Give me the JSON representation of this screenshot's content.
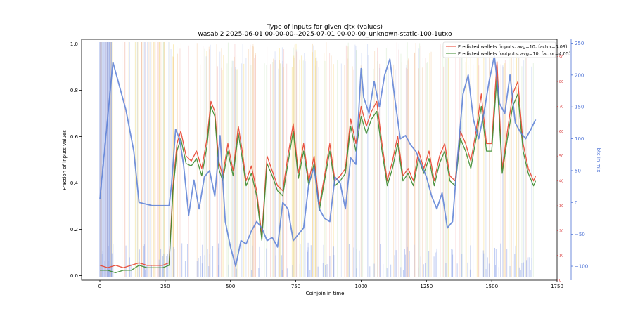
{
  "chart_data": {
    "type": "line",
    "title": "Type of inputs for given cjtx (values)",
    "subtitle": "wasabi2 2025-06-01 00-00-00--2025-07-01 00-00-00_unknown-static-100-1utxo",
    "xlabel": "Coinjoin in time",
    "ylabel": "Fraction of inputs values",
    "y2label": "btc in mix",
    "xlim": [
      -70,
      1750
    ],
    "ylim": [
      -0.02,
      1.02
    ],
    "y2lim": [
      -122,
      256
    ],
    "y3lim": [
      0,
      97
    ],
    "x_ticks": [
      "0",
      "250",
      "500",
      "750",
      "1000",
      "1250",
      "1500",
      "1750"
    ],
    "x_tick_values": [
      0,
      250,
      500,
      750,
      1000,
      1250,
      1500,
      1750
    ],
    "y_ticks": [
      "0.0",
      "0.2",
      "0.4",
      "0.6",
      "0.8",
      "1.0"
    ],
    "y_tick_values": [
      0.0,
      0.2,
      0.4,
      0.6,
      0.8,
      1.0
    ],
    "y2_ticks": [
      "−100",
      "−50",
      "0",
      "50",
      "100",
      "150",
      "200",
      "250"
    ],
    "y2_tick_values": [
      -100,
      -50,
      0,
      50,
      100,
      150,
      200,
      250
    ],
    "y3_ticks": [
      "0",
      "10",
      "20",
      "30",
      "40",
      "50",
      "60",
      "70",
      "80",
      "90"
    ],
    "y3_tick_values": [
      0,
      10,
      20,
      30,
      40,
      50,
      60,
      70,
      80,
      90
    ],
    "legend_position": "upper-right",
    "grid": false,
    "series": [
      {
        "name": "Predicted wallets (inputs, avg=10, factor=3.09)",
        "color": "#e8412c",
        "axis": "right-inner",
        "x": [
          0,
          30,
          60,
          90,
          120,
          150,
          180,
          210,
          240,
          265,
          280,
          295,
          310,
          330,
          350,
          370,
          390,
          410,
          425,
          440,
          455,
          470,
          490,
          510,
          530,
          545,
          560,
          580,
          600,
          620,
          640,
          660,
          680,
          700,
          720,
          740,
          760,
          780,
          800,
          820,
          840,
          860,
          880,
          900,
          920,
          940,
          960,
          980,
          1000,
          1020,
          1040,
          1060,
          1080,
          1100,
          1120,
          1140,
          1160,
          1180,
          1200,
          1220,
          1240,
          1260,
          1280,
          1300,
          1320,
          1340,
          1360,
          1380,
          1400,
          1420,
          1440,
          1460,
          1480,
          1500,
          1520,
          1540,
          1560,
          1580,
          1600,
          1620,
          1640,
          1660,
          1668
        ],
        "y": [
          6,
          5,
          6,
          5,
          6,
          7,
          6,
          6,
          6,
          7,
          38,
          55,
          60,
          50,
          48,
          52,
          45,
          57,
          72,
          68,
          48,
          42,
          55,
          44,
          62,
          52,
          40,
          46,
          36,
          18,
          50,
          44,
          38,
          36,
          50,
          63,
          43,
          55,
          40,
          50,
          30,
          42,
          55,
          40,
          42,
          45,
          65,
          55,
          70,
          62,
          68,
          72,
          55,
          40,
          48,
          58,
          42,
          45,
          40,
          52,
          45,
          52,
          40,
          50,
          55,
          42,
          40,
          60,
          55,
          48,
          60,
          75,
          55,
          55,
          88,
          45,
          60,
          75,
          80,
          55,
          45,
          40,
          42
        ]
      },
      {
        "name": "Predicted wallets (outputs, avg=10, factor=4.05)",
        "color": "#3a8a2e",
        "axis": "right-inner",
        "x": [
          0,
          30,
          60,
          90,
          120,
          150,
          180,
          210,
          240,
          265,
          280,
          295,
          310,
          330,
          350,
          370,
          390,
          410,
          425,
          440,
          455,
          470,
          490,
          510,
          530,
          545,
          560,
          580,
          600,
          620,
          640,
          660,
          680,
          700,
          720,
          740,
          760,
          780,
          800,
          820,
          840,
          860,
          880,
          900,
          920,
          940,
          960,
          980,
          1000,
          1020,
          1040,
          1060,
          1080,
          1100,
          1120,
          1140,
          1160,
          1180,
          1200,
          1220,
          1240,
          1260,
          1280,
          1300,
          1320,
          1340,
          1360,
          1380,
          1400,
          1420,
          1440,
          1460,
          1480,
          1500,
          1520,
          1540,
          1560,
          1580,
          1600,
          1620,
          1640,
          1660,
          1668
        ],
        "y": [
          4,
          4,
          3,
          4,
          4,
          6,
          5,
          5,
          5,
          6,
          36,
          52,
          57,
          47,
          46,
          49,
          42,
          54,
          70,
          66,
          45,
          40,
          52,
          42,
          59,
          49,
          38,
          43,
          34,
          16,
          47,
          42,
          36,
          34,
          47,
          60,
          41,
          52,
          38,
          47,
          28,
          40,
          52,
          38,
          40,
          43,
          62,
          52,
          66,
          59,
          65,
          68,
          52,
          38,
          45,
          55,
          40,
          43,
          38,
          49,
          43,
          49,
          38,
          47,
          52,
          40,
          38,
          57,
          52,
          45,
          57,
          70,
          52,
          52,
          82,
          43,
          57,
          70,
          75,
          52,
          43,
          38,
          40
        ]
      },
      {
        "name": "btc in mix",
        "color": "#5b7fd6",
        "axis": "right-outer",
        "x": [
          0,
          20,
          50,
          70,
          100,
          130,
          150,
          200,
          265,
          275,
          290,
          305,
          320,
          340,
          360,
          380,
          400,
          420,
          440,
          460,
          480,
          500,
          520,
          540,
          560,
          580,
          600,
          620,
          640,
          660,
          680,
          700,
          720,
          740,
          760,
          780,
          800,
          820,
          840,
          860,
          880,
          900,
          920,
          940,
          960,
          980,
          1000,
          1010,
          1030,
          1050,
          1070,
          1090,
          1110,
          1130,
          1150,
          1170,
          1190,
          1210,
          1230,
          1250,
          1270,
          1290,
          1310,
          1330,
          1350,
          1370,
          1390,
          1410,
          1430,
          1450,
          1470,
          1490,
          1510,
          1530,
          1550,
          1570,
          1590,
          1610,
          1630,
          1650,
          1668
        ],
        "y": [
          5,
          90,
          220,
          190,
          145,
          80,
          0,
          -5,
          -5,
          30,
          115,
          100,
          60,
          -20,
          35,
          -10,
          40,
          50,
          10,
          105,
          -30,
          -70,
          -100,
          -60,
          -65,
          -45,
          -30,
          -40,
          -60,
          -55,
          -70,
          0,
          -10,
          -60,
          -50,
          -40,
          30,
          55,
          -10,
          -25,
          -30,
          40,
          30,
          -10,
          70,
          60,
          210,
          165,
          140,
          190,
          150,
          200,
          225,
          160,
          100,
          105,
          90,
          80,
          60,
          40,
          10,
          -10,
          15,
          -40,
          -30,
          75,
          170,
          200,
          130,
          100,
          140,
          190,
          230,
          155,
          140,
          200,
          125,
          110,
          100,
          115,
          130
        ]
      }
    ]
  }
}
